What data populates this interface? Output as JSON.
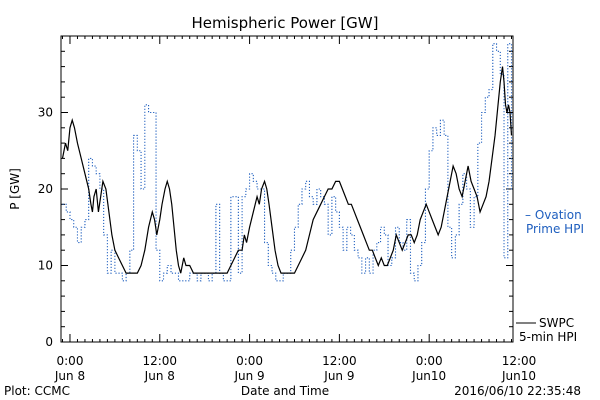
{
  "chart_data": {
    "type": "line",
    "title": "Hemispheric Power [GW]",
    "ylabel": "P [GW]",
    "xlabel": "Date and Time",
    "x_unit": "hours",
    "xlim": [
      -1.2,
      59.2
    ],
    "ylim": [
      0,
      40
    ],
    "y_ticks": [
      0,
      10,
      20,
      30
    ],
    "x_ticks": [
      {
        "x": 0,
        "time": "0:00",
        "date": "Jun 8"
      },
      {
        "x": 12,
        "time": "12:00",
        "date": "Jun 8"
      },
      {
        "x": 24,
        "time": "0:00",
        "date": "Jun 9"
      },
      {
        "x": 36,
        "time": "12:00",
        "date": "Jun 9"
      },
      {
        "x": 48,
        "time": "0:00",
        "date": "Jun10"
      },
      {
        "x": 60,
        "time": "12:00",
        "date": "Jun10"
      }
    ],
    "grid": false,
    "legend_position": "right",
    "series": [
      {
        "name": "SWPC 5-min HPI",
        "legend_lines": [
          "SWPC",
          "5-min HPI"
        ],
        "color": "#000000",
        "style": "solid",
        "points": [
          [
            -1.0,
            24
          ],
          [
            -0.6,
            26
          ],
          [
            -0.3,
            25
          ],
          [
            0.0,
            28
          ],
          [
            0.3,
            29
          ],
          [
            0.6,
            28
          ],
          [
            1.0,
            26
          ],
          [
            1.5,
            24
          ],
          [
            2.0,
            22
          ],
          [
            2.5,
            20
          ],
          [
            2.8,
            18
          ],
          [
            3.0,
            17
          ],
          [
            3.2,
            19
          ],
          [
            3.5,
            20
          ],
          [
            3.8,
            17
          ],
          [
            4.1,
            19
          ],
          [
            4.4,
            21
          ],
          [
            4.8,
            20
          ],
          [
            5.2,
            17
          ],
          [
            5.6,
            14
          ],
          [
            6.0,
            12
          ],
          [
            6.5,
            11
          ],
          [
            7.0,
            10
          ],
          [
            7.5,
            9
          ],
          [
            8.0,
            9
          ],
          [
            9.0,
            9
          ],
          [
            9.5,
            10
          ],
          [
            10.0,
            12
          ],
          [
            10.5,
            15
          ],
          [
            11.0,
            17
          ],
          [
            11.3,
            16
          ],
          [
            11.6,
            14
          ],
          [
            12.0,
            16
          ],
          [
            12.3,
            18
          ],
          [
            12.7,
            20
          ],
          [
            13.0,
            21
          ],
          [
            13.3,
            20
          ],
          [
            13.6,
            18
          ],
          [
            13.9,
            15
          ],
          [
            14.2,
            12
          ],
          [
            14.5,
            10
          ],
          [
            14.8,
            9
          ],
          [
            15.2,
            11
          ],
          [
            15.5,
            10
          ],
          [
            16.0,
            10
          ],
          [
            16.5,
            9
          ],
          [
            17.0,
            9
          ],
          [
            18.0,
            9
          ],
          [
            19.0,
            9
          ],
          [
            20.0,
            9
          ],
          [
            21.0,
            9
          ],
          [
            21.5,
            10
          ],
          [
            22.0,
            11
          ],
          [
            22.5,
            12
          ],
          [
            23.0,
            12
          ],
          [
            23.3,
            14
          ],
          [
            23.6,
            13
          ],
          [
            24.0,
            15
          ],
          [
            24.5,
            17
          ],
          [
            25.0,
            19
          ],
          [
            25.3,
            18
          ],
          [
            25.6,
            20
          ],
          [
            26.0,
            21
          ],
          [
            26.3,
            20
          ],
          [
            26.6,
            18
          ],
          [
            27.0,
            15
          ],
          [
            27.4,
            12
          ],
          [
            27.8,
            10
          ],
          [
            28.2,
            9
          ],
          [
            28.6,
            9
          ],
          [
            29.0,
            9
          ],
          [
            29.5,
            9
          ],
          [
            30.0,
            9
          ],
          [
            30.5,
            10
          ],
          [
            31.0,
            11
          ],
          [
            31.5,
            12
          ],
          [
            32.0,
            14
          ],
          [
            32.5,
            16
          ],
          [
            33.0,
            17
          ],
          [
            33.5,
            18
          ],
          [
            34.0,
            19
          ],
          [
            34.5,
            20
          ],
          [
            35.0,
            20
          ],
          [
            35.5,
            21
          ],
          [
            36.0,
            21
          ],
          [
            36.4,
            20
          ],
          [
            36.8,
            19
          ],
          [
            37.2,
            18
          ],
          [
            37.6,
            18
          ],
          [
            38.0,
            17
          ],
          [
            38.4,
            16
          ],
          [
            38.8,
            15
          ],
          [
            39.2,
            14
          ],
          [
            39.6,
            13
          ],
          [
            40.0,
            12
          ],
          [
            40.4,
            12
          ],
          [
            40.8,
            11
          ],
          [
            41.2,
            10
          ],
          [
            41.6,
            11
          ],
          [
            42.0,
            10
          ],
          [
            42.4,
            10
          ],
          [
            42.8,
            11
          ],
          [
            43.2,
            12
          ],
          [
            43.6,
            14
          ],
          [
            44.0,
            13
          ],
          [
            44.4,
            12
          ],
          [
            44.8,
            13
          ],
          [
            45.2,
            14
          ],
          [
            45.6,
            14
          ],
          [
            46.0,
            13
          ],
          [
            46.4,
            14
          ],
          [
            46.8,
            16
          ],
          [
            47.2,
            17
          ],
          [
            47.6,
            18
          ],
          [
            48.0,
            17
          ],
          [
            48.4,
            16
          ],
          [
            48.8,
            15
          ],
          [
            49.2,
            14
          ],
          [
            49.6,
            15
          ],
          [
            50.0,
            17
          ],
          [
            50.4,
            19
          ],
          [
            50.8,
            21
          ],
          [
            51.2,
            23
          ],
          [
            51.6,
            22
          ],
          [
            52.0,
            20
          ],
          [
            52.4,
            19
          ],
          [
            52.8,
            21
          ],
          [
            53.2,
            23
          ],
          [
            53.6,
            21
          ],
          [
            54.0,
            20
          ],
          [
            54.4,
            19
          ],
          [
            54.8,
            17
          ],
          [
            55.2,
            18
          ],
          [
            55.6,
            19
          ],
          [
            56.0,
            21
          ],
          [
            56.4,
            24
          ],
          [
            56.8,
            27
          ],
          [
            57.2,
            31
          ],
          [
            57.5,
            34
          ],
          [
            57.8,
            36
          ],
          [
            58.0,
            34
          ],
          [
            58.2,
            31
          ],
          [
            58.4,
            30
          ],
          [
            58.6,
            31
          ],
          [
            58.8,
            30
          ],
          [
            59.0,
            27
          ]
        ]
      },
      {
        "name": "Ovation Prime HPI",
        "legend_lines": [
          "– Ovation",
          "Prime HPI"
        ],
        "color": "#1f5fbf",
        "style": "dotted-step",
        "points": [
          [
            -1.0,
            18
          ],
          [
            -0.5,
            17
          ],
          [
            0.0,
            16
          ],
          [
            0.5,
            15
          ],
          [
            1.0,
            13
          ],
          [
            1.5,
            15
          ],
          [
            2.0,
            16
          ],
          [
            2.5,
            24
          ],
          [
            3.0,
            23
          ],
          [
            3.5,
            22
          ],
          [
            4.0,
            20
          ],
          [
            4.5,
            14
          ],
          [
            5.0,
            9
          ],
          [
            5.5,
            12
          ],
          [
            6.0,
            9
          ],
          [
            6.5,
            9
          ],
          [
            7.0,
            8
          ],
          [
            7.5,
            9
          ],
          [
            8.0,
            12
          ],
          [
            8.5,
            27
          ],
          [
            9.0,
            25
          ],
          [
            9.5,
            20
          ],
          [
            10.0,
            31
          ],
          [
            10.5,
            30
          ],
          [
            11.0,
            30
          ],
          [
            11.5,
            12
          ],
          [
            12.0,
            8
          ],
          [
            12.5,
            9
          ],
          [
            13.0,
            10
          ],
          [
            13.5,
            9
          ],
          [
            14.0,
            9
          ],
          [
            14.5,
            8
          ],
          [
            15.0,
            8
          ],
          [
            15.5,
            8
          ],
          [
            16.0,
            9
          ],
          [
            16.5,
            9
          ],
          [
            17.0,
            8
          ],
          [
            17.5,
            9
          ],
          [
            18.0,
            9
          ],
          [
            18.5,
            8
          ],
          [
            19.0,
            9
          ],
          [
            19.5,
            18
          ],
          [
            20.0,
            9
          ],
          [
            20.5,
            8
          ],
          [
            21.0,
            8
          ],
          [
            21.5,
            19
          ],
          [
            22.0,
            19
          ],
          [
            22.5,
            9
          ],
          [
            23.0,
            19
          ],
          [
            23.5,
            20
          ],
          [
            24.0,
            22
          ],
          [
            24.5,
            21
          ],
          [
            25.0,
            20
          ],
          [
            25.5,
            20
          ],
          [
            26.0,
            13
          ],
          [
            26.5,
            10
          ],
          [
            27.0,
            9
          ],
          [
            27.5,
            8
          ],
          [
            28.0,
            8
          ],
          [
            28.5,
            9
          ],
          [
            29.0,
            9
          ],
          [
            29.5,
            12
          ],
          [
            30.0,
            15
          ],
          [
            30.5,
            18
          ],
          [
            31.0,
            20
          ],
          [
            31.5,
            21
          ],
          [
            32.0,
            19
          ],
          [
            32.5,
            18
          ],
          [
            33.0,
            20
          ],
          [
            33.5,
            19
          ],
          [
            34.0,
            18
          ],
          [
            34.5,
            14
          ],
          [
            35.0,
            19
          ],
          [
            35.5,
            17
          ],
          [
            36.0,
            15
          ],
          [
            36.5,
            12
          ],
          [
            37.0,
            15
          ],
          [
            37.5,
            14
          ],
          [
            38.0,
            12
          ],
          [
            38.5,
            11
          ],
          [
            39.0,
            9
          ],
          [
            39.5,
            11
          ],
          [
            40.0,
            9
          ],
          [
            40.5,
            12
          ],
          [
            41.0,
            13
          ],
          [
            41.5,
            15
          ],
          [
            42.0,
            14
          ],
          [
            42.5,
            10
          ],
          [
            43.0,
            11
          ],
          [
            43.5,
            15
          ],
          [
            44.0,
            13
          ],
          [
            44.5,
            12
          ],
          [
            45.0,
            16
          ],
          [
            45.5,
            9
          ],
          [
            46.0,
            8
          ],
          [
            46.5,
            10
          ],
          [
            47.0,
            13
          ],
          [
            47.5,
            20
          ],
          [
            48.0,
            25
          ],
          [
            48.5,
            28
          ],
          [
            49.0,
            27
          ],
          [
            49.5,
            29
          ],
          [
            50.0,
            27
          ],
          [
            50.5,
            15
          ],
          [
            51.0,
            11
          ],
          [
            51.5,
            14
          ],
          [
            52.0,
            18
          ],
          [
            52.5,
            22
          ],
          [
            53.0,
            20
          ],
          [
            53.5,
            15
          ],
          [
            54.0,
            19
          ],
          [
            54.5,
            26
          ],
          [
            55.0,
            30
          ],
          [
            55.5,
            32
          ],
          [
            56.0,
            33
          ],
          [
            56.5,
            39
          ],
          [
            57.0,
            38
          ],
          [
            57.5,
            35
          ],
          [
            58.0,
            11
          ],
          [
            58.5,
            39
          ],
          [
            59.0,
            20
          ]
        ]
      }
    ]
  },
  "footer": {
    "plot_credit": "Plot: CCMC",
    "timestamp": "2016/06/10 22:35:48"
  }
}
